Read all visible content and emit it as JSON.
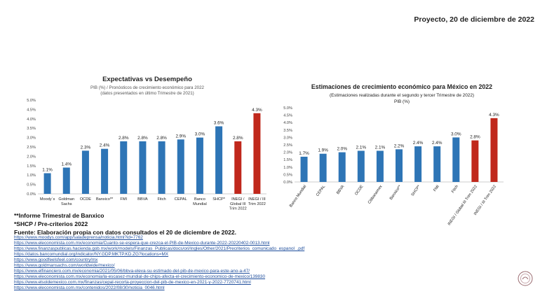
{
  "header": {
    "date_text": "Proyecto, 20 de diciembre de 2022"
  },
  "chart_data": [
    {
      "type": "bar",
      "title": "Expectativas vs Desempeño",
      "subtitle_lines": [
        "PIB (%) / Pronósticos de crecimiento económico para 2022",
        "(datos presentados en último Trimestre de 2021)"
      ],
      "categories": [
        [
          "Moody´s"
        ],
        [
          "Goldman",
          "Sachs"
        ],
        [
          "OCDE"
        ],
        [
          "Banxico**"
        ],
        [
          "FMI"
        ],
        [
          "BBVA"
        ],
        [
          "Fitch"
        ],
        [
          "CEPAL"
        ],
        [
          "Banco",
          "Mundial"
        ],
        [
          "SHCP*"
        ],
        [
          "INEGI /",
          "Global III",
          "Trim 2022"
        ],
        [
          "INEGI / III",
          "Trim 2022"
        ]
      ],
      "values": [
        1.1,
        1.4,
        2.3,
        2.4,
        2.8,
        2.8,
        2.8,
        2.9,
        3.0,
        3.6,
        2.8,
        4.3
      ],
      "data_labels": [
        "1.1%",
        "1.4%",
        "2.3%",
        "2.4%",
        "2.8%",
        "2.8%",
        "2.8%",
        "2.9%",
        "3.0%",
        "3.6%",
        "2.8%",
        "4.3%"
      ],
      "highlight_indices": [
        10,
        11
      ],
      "yticks": [
        "0.0%",
        "0.5%",
        "1.0%",
        "1.5%",
        "2.0%",
        "2.5%",
        "3.0%",
        "3.5%",
        "4.0%",
        "4.5%",
        "5.0%"
      ],
      "ylim": [
        0,
        5
      ],
      "colors": {
        "bar": "#2e75b6",
        "highlight": "#c0281c"
      }
    },
    {
      "type": "bar",
      "title": "Estimaciones de crecimiento económico para México en 2022",
      "subtitle_lines": [
        "(Estimaciones realizadas durante el segundo y tercer Trimestre de 2022)",
        "PIB (%)"
      ],
      "categories": [
        "Banco Mundial",
        "CEPAL",
        "BBVA",
        "OCDE",
        "Citibanamex",
        "Banxico**",
        "SHCP*",
        "FMI",
        "Fitch",
        "INEGI / Global III Trim 2022",
        "INEGI / III Trim 2022"
      ],
      "values": [
        1.7,
        1.9,
        2.0,
        2.1,
        2.1,
        2.2,
        2.4,
        2.4,
        3.0,
        2.8,
        4.3
      ],
      "data_labels": [
        "1.7%",
        "1.9%",
        "2.0%",
        "2.1%",
        "2.1%",
        "2.2%",
        "2.4%",
        "2.4%",
        "3.0%",
        "2.8%",
        "4.3%"
      ],
      "highlight_indices": [
        9,
        10
      ],
      "yticks": [
        "0.0%",
        "0.5%",
        "1.0%",
        "1.5%",
        "2.0%",
        "2.5%",
        "3.0%",
        "3.5%",
        "4.0%",
        "4.5%",
        "5.0%"
      ],
      "ylim": [
        0,
        5
      ],
      "colors": {
        "bar": "#2e75b6",
        "highlight": "#c0281c"
      }
    }
  ],
  "notes": {
    "banxico": "**Informe Trimestral de Banxico",
    "shcp": "*SHCP / Pre-criterios 2022",
    "source": "Fuente: Elaboración propia con datos consultados el 20 de diciembre de 2022."
  },
  "links": [
    "https://www.moodys.com/app/saladeprensa/noticia.html?id=7762",
    "https://www.eleconomista.com.mx/economia/Cuanto-se-espera-que-crezca-el-PIB-de-Mexico-durante-2022-20220402-0013.html",
    "https://www.finanzaspublicas.hacienda.gob.mx/work/models/Finanzas_Publicas/docs/ori/Ingles/Other/2021/Precriterios_comunicado_espanol_.pdf",
    "https://datos.bancomundial.org/indicator/NY.GDP.MKTP.KD.ZG?locations=MX",
    "https://www.goodfeelsfeel.com/country/mx",
    "https://www.goldmansachs.com/worldwide/mexico/",
    "https://www.elfinanciero.com.mx/economia/2021/05/06/bbva-eleva-su-estimado-del-pib-de-mexico-para-este-ano-a-47/",
    "https://www.eleconomista.com.mx/economia/la-escasez-mundial-de-chips-afecta-el-crecimiento-economico-de-mexico/139830",
    "https://www.elsoldemexico.com.mx/finanzas/cepal-recorta-proyeccion-del-pib-de-mexico-en-2021-y-2022-7720741.html",
    "https://www.eleconomista.com.mx/contenidos/2022/08/30/noticia_0046.html"
  ],
  "icons": {
    "logo": "seal-logo-icon"
  }
}
